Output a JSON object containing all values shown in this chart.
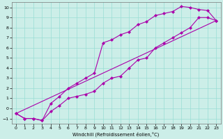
{
  "bg_color": "#cceee8",
  "grid_color": "#99ddd5",
  "line_color": "#aa00aa",
  "xlim": [
    -0.5,
    23.5
  ],
  "ylim": [
    -1.5,
    10.5
  ],
  "xticks": [
    0,
    1,
    2,
    3,
    4,
    5,
    6,
    7,
    8,
    9,
    10,
    11,
    12,
    13,
    14,
    15,
    16,
    17,
    18,
    19,
    20,
    21,
    22,
    23
  ],
  "yticks": [
    -1,
    0,
    1,
    2,
    3,
    4,
    5,
    6,
    7,
    8,
    9,
    10
  ],
  "xlabel": "Windchill (Refroidissement éolien,°C)",
  "line1_x": [
    0,
    1,
    2,
    3,
    4,
    5,
    6,
    7,
    8,
    9,
    10,
    11,
    12,
    13,
    14,
    15,
    16,
    17,
    18,
    19,
    20,
    21,
    22,
    23
  ],
  "line1_y": [
    -0.5,
    -1.0,
    -1.0,
    -1.2,
    -0.3,
    0.3,
    1.0,
    1.2,
    1.4,
    1.7,
    2.5,
    3.0,
    3.2,
    4.0,
    4.8,
    5.0,
    6.0,
    6.5,
    7.0,
    7.5,
    8.0,
    9.0,
    9.0,
    8.7
  ],
  "line2_x": [
    0,
    1,
    2,
    3,
    4,
    5,
    6,
    7,
    8,
    9,
    10,
    11,
    12,
    13,
    14,
    15,
    16,
    17,
    18,
    19,
    20,
    21,
    22,
    23
  ],
  "line2_y": [
    -0.5,
    -1.0,
    -1.0,
    -1.2,
    0.5,
    1.2,
    2.0,
    2.5,
    3.0,
    3.5,
    6.5,
    6.8,
    7.3,
    7.6,
    8.3,
    8.6,
    9.2,
    9.4,
    9.6,
    10.1,
    10.0,
    9.8,
    9.7,
    8.7
  ],
  "line3_x": [
    0,
    23
  ],
  "line3_y": [
    -0.5,
    8.7
  ]
}
